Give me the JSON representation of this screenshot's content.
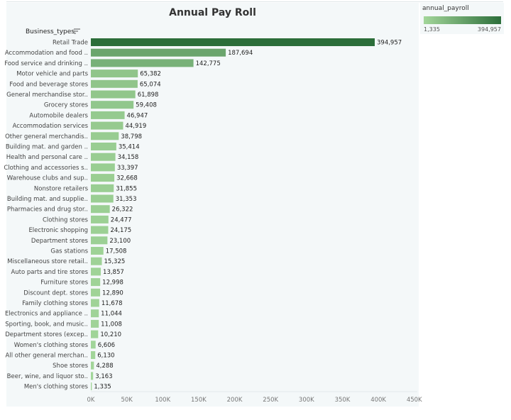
{
  "chart_data": {
    "type": "bar",
    "orientation": "horizontal",
    "title": "Annual Pay Roll",
    "ylabel": "Business_types",
    "xlabel": "",
    "xlim": [
      0,
      450000
    ],
    "x_ticks": [
      "0K",
      "50K",
      "100K",
      "150K",
      "200K",
      "250K",
      "300K",
      "350K",
      "400K",
      "450K"
    ],
    "x_tick_values": [
      0,
      50000,
      100000,
      150000,
      200000,
      250000,
      300000,
      350000,
      400000,
      450000
    ],
    "categories": [
      "Retail Trade",
      "Accommodation and food ..",
      "Food service and drinking ..",
      "Motor vehicle and parts",
      "Food and beverage stores",
      "General merchandise stor..",
      "Grocery stores",
      "Automobile dealers",
      "Accommodation services",
      "Other general merchandis..",
      "Building mat. and garden ..",
      "Health and personal care ..",
      "Clothing and accessories s..",
      "Warehouse clubs and sup..",
      "Nonstore retailers",
      "Building mat. and supplie..",
      "Pharmacies and drug stor..",
      "Clothing stores",
      "Electronic shopping",
      "Department stores",
      "Gas stations",
      "Miscellaneous store retail..",
      "Auto parts and tire stores",
      "Furniture stores",
      "Discount dept. stores",
      "Family clothing stores",
      "Electronics and appliance ..",
      "Sporting, book, and music..",
      "Department stores (excep..",
      "Women's clothing stores",
      "All other general merchan..",
      "Shoe stores",
      "Beer, wine, and liquor sto..",
      "Men's clothing stores"
    ],
    "values": [
      394957,
      187694,
      142775,
      65382,
      65074,
      61898,
      59408,
      46947,
      44919,
      38798,
      35414,
      34158,
      33397,
      32668,
      31855,
      31353,
      26322,
      24477,
      24175,
      23100,
      17508,
      15325,
      13857,
      12998,
      12890,
      11678,
      11044,
      11008,
      10210,
      6606,
      6130,
      4288,
      3163,
      1335
    ],
    "value_labels": [
      "394,957",
      "187,694",
      "142,775",
      "65,382",
      "65,074",
      "61,898",
      "59,408",
      "46,947",
      "44,919",
      "38,798",
      "35,414",
      "34,158",
      "33,397",
      "32,668",
      "31,855",
      "31,353",
      "26,322",
      "24,477",
      "24,175",
      "23,100",
      "17,508",
      "15,325",
      "13,857",
      "12,998",
      "12,890",
      "11,678",
      "11,044",
      "11,008",
      "10,210",
      "6,606",
      "6,130",
      "4,288",
      "3,163",
      "1,335"
    ],
    "color_scale": {
      "min_color": "#a3d69a",
      "max_color": "#2c6e3a"
    },
    "legend": {
      "title": "annual_payroll",
      "min_label": "1,335",
      "max_label": "394,957",
      "min": 1335,
      "max": 394957,
      "placement": "top-right"
    },
    "grid": false
  }
}
